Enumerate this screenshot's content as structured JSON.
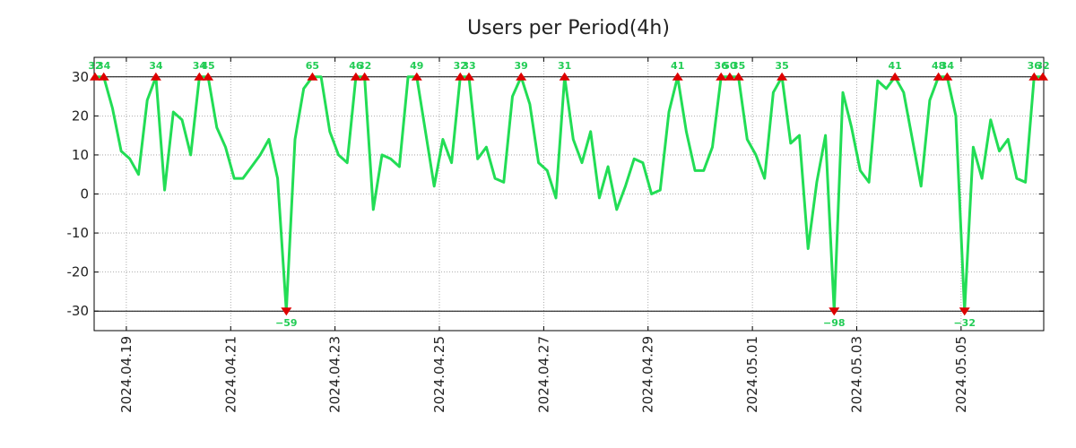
{
  "chart_data": {
    "type": "line",
    "title": "Users per Period(4h)",
    "xlabel": "",
    "ylabel": "",
    "ylim": [
      -35,
      35
    ],
    "y_ticks": [
      30,
      20,
      10,
      0,
      -10,
      -20,
      -30
    ],
    "clip": {
      "upper": 30,
      "lower": -30
    },
    "x_tick_labels": [
      "2024.04.19",
      "2024.04.21",
      "2024.04.23",
      "2024.04.25",
      "2024.04.27",
      "2024.04.29",
      "2024.05.01",
      "2024.05.03",
      "2024.05.05"
    ],
    "x_tick_index": [
      3.6,
      15.6,
      27.6,
      39.6,
      51.6,
      63.6,
      75.6,
      87.6,
      99.6
    ],
    "series": [
      {
        "name": "Users",
        "values": [
          30,
          30,
          22,
          11,
          9,
          5,
          24,
          30,
          1,
          21,
          19,
          10,
          30,
          30,
          17,
          12,
          4,
          4,
          7,
          10,
          14,
          4,
          -30,
          14,
          27,
          30,
          30,
          16,
          10,
          8,
          30,
          30,
          -4,
          10,
          9,
          7,
          30,
          30,
          16,
          2,
          14,
          8,
          30,
          30,
          9,
          12,
          4,
          3,
          25,
          30,
          23,
          8,
          6,
          -1,
          30,
          14,
          8,
          16,
          -1,
          7,
          -4,
          2,
          9,
          8,
          0,
          1,
          21,
          30,
          16,
          6,
          6,
          12,
          30,
          30,
          30,
          14,
          10,
          4,
          26,
          30,
          13,
          15,
          -14,
          3,
          15,
          -30,
          26,
          17,
          6,
          3,
          29,
          27,
          30,
          26,
          14,
          2,
          24,
          30,
          30,
          20,
          -30,
          12,
          4,
          19,
          11,
          14,
          4,
          3,
          30,
          30
        ]
      }
    ],
    "peaks": [
      {
        "index": 0,
        "label": "32",
        "dir": "up"
      },
      {
        "index": 1,
        "label": "34",
        "dir": "up"
      },
      {
        "index": 7,
        "label": "34",
        "dir": "up"
      },
      {
        "index": 12,
        "label": "34",
        "dir": "up"
      },
      {
        "index": 13,
        "label": "45",
        "dir": "up"
      },
      {
        "index": 22,
        "label": "−59",
        "dir": "down"
      },
      {
        "index": 25,
        "label": "65",
        "dir": "up"
      },
      {
        "index": 30,
        "label": "46",
        "dir": "up"
      },
      {
        "index": 31,
        "label": "32",
        "dir": "up"
      },
      {
        "index": 37,
        "label": "49",
        "dir": "up"
      },
      {
        "index": 42,
        "label": "32",
        "dir": "up"
      },
      {
        "index": 43,
        "label": "33",
        "dir": "up"
      },
      {
        "index": 49,
        "label": "39",
        "dir": "up"
      },
      {
        "index": 54,
        "label": "31",
        "dir": "up"
      },
      {
        "index": 67,
        "label": "41",
        "dir": "up"
      },
      {
        "index": 72,
        "label": "36",
        "dir": "up"
      },
      {
        "index": 73,
        "label": "50",
        "dir": "up"
      },
      {
        "index": 74,
        "label": "35",
        "dir": "up"
      },
      {
        "index": 79,
        "label": "35",
        "dir": "up"
      },
      {
        "index": 85,
        "label": "−98",
        "dir": "down"
      },
      {
        "index": 92,
        "label": "41",
        "dir": "up"
      },
      {
        "index": 97,
        "label": "48",
        "dir": "up"
      },
      {
        "index": 98,
        "label": "34",
        "dir": "up"
      },
      {
        "index": 100,
        "label": "−32",
        "dir": "down"
      },
      {
        "index": 108,
        "label": "36",
        "dir": "up"
      },
      {
        "index": 109,
        "label": "32",
        "dir": "up"
      }
    ],
    "colors": {
      "line": "#22dd55",
      "marker": "#dd0000",
      "peak_label": "#22cc55",
      "grid": "#999999",
      "axis": "#000000"
    },
    "grid": true,
    "legend": "none"
  }
}
